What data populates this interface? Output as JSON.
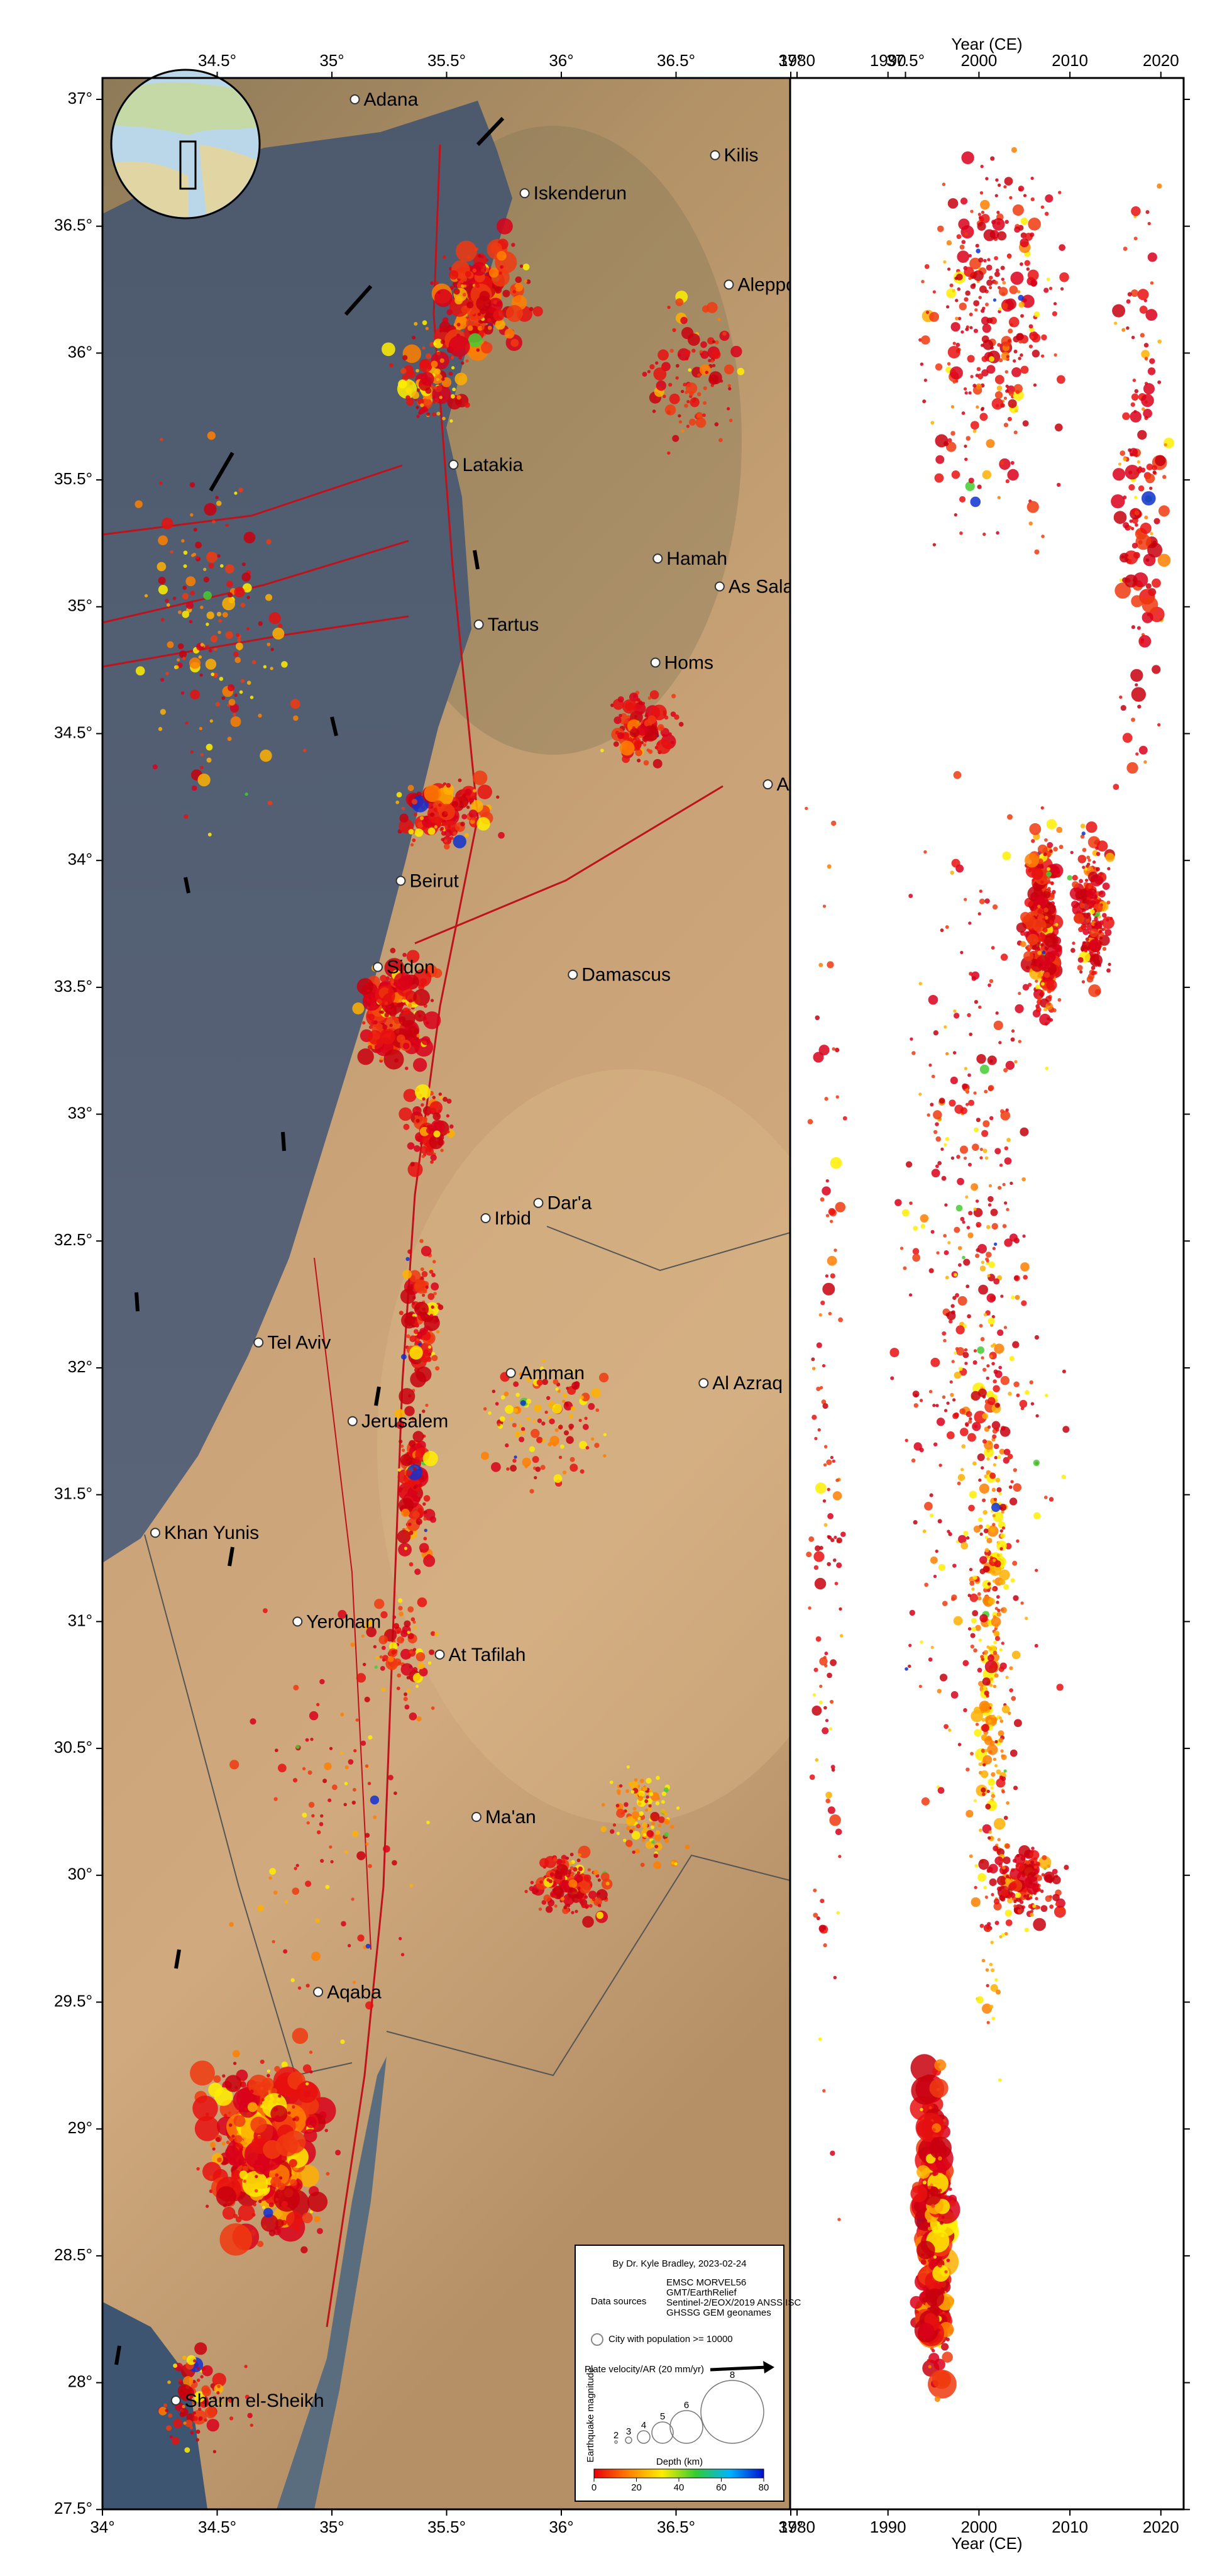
{
  "map": {
    "lon_ticks_bottom": [
      {
        "value": 34,
        "label": "34°"
      },
      {
        "value": 34.5,
        "label": "34.5°"
      },
      {
        "value": 35,
        "label": "35°"
      },
      {
        "value": 35.5,
        "label": "35.5°"
      },
      {
        "value": 36,
        "label": "36°"
      },
      {
        "value": 36.5,
        "label": "36.5°"
      },
      {
        "value": 37,
        "label": "37°"
      }
    ],
    "lon_ticks_top": [
      {
        "value": 34.5,
        "label": "34.5°"
      },
      {
        "value": 35,
        "label": "35°"
      },
      {
        "value": 35.5,
        "label": "35.5°"
      },
      {
        "value": 36,
        "label": "36°"
      },
      {
        "value": 36.5,
        "label": "36.5°"
      },
      {
        "value": 37,
        "label": "37°"
      },
      {
        "value": 37.5,
        "label": "37.5°"
      }
    ],
    "lat_ticks": [
      {
        "value": 37,
        "label": "37°"
      },
      {
        "value": 36.5,
        "label": "36.5°"
      },
      {
        "value": 36,
        "label": "36°"
      },
      {
        "value": 35.5,
        "label": "35.5°"
      },
      {
        "value": 35,
        "label": "35°"
      },
      {
        "value": 34.5,
        "label": "34.5°"
      },
      {
        "value": 34,
        "label": "34°"
      },
      {
        "value": 33.5,
        "label": "33.5°"
      },
      {
        "value": 33,
        "label": "33°"
      },
      {
        "value": 32.5,
        "label": "32.5°"
      },
      {
        "value": 32,
        "label": "32°"
      },
      {
        "value": 31.5,
        "label": "31.5°"
      },
      {
        "value": 31,
        "label": "31°"
      },
      {
        "value": 30.5,
        "label": "30.5°"
      },
      {
        "value": 30,
        "label": "30°"
      },
      {
        "value": 29.5,
        "label": "29.5°"
      },
      {
        "value": 29,
        "label": "29°"
      },
      {
        "value": 28.5,
        "label": "28.5°"
      },
      {
        "value": 28,
        "label": "28°"
      },
      {
        "value": 27.5,
        "label": "27.5°"
      }
    ],
    "cities": [
      {
        "name": "Adana",
        "lon": 35.1,
        "lat": 37.0
      },
      {
        "name": "Kilis",
        "lon": 36.67,
        "lat": 36.78
      },
      {
        "name": "Iskenderun",
        "lon": 35.84,
        "lat": 36.63
      },
      {
        "name": "Aleppo",
        "lon": 36.73,
        "lat": 36.27
      },
      {
        "name": "Latakia",
        "lon": 35.53,
        "lat": 35.56
      },
      {
        "name": "Hamah",
        "lon": 36.42,
        "lat": 35.19
      },
      {
        "name": "As Sala",
        "lon": 36.69,
        "lat": 35.08
      },
      {
        "name": "Tartus",
        "lon": 35.64,
        "lat": 34.93
      },
      {
        "name": "Homs",
        "lon": 36.41,
        "lat": 34.78
      },
      {
        "name": "Al",
        "lon": 36.9,
        "lat": 34.3
      },
      {
        "name": "Beirut",
        "lon": 35.3,
        "lat": 33.92
      },
      {
        "name": "Sidon",
        "lon": 35.2,
        "lat": 33.58
      },
      {
        "name": "Damascus",
        "lon": 36.05,
        "lat": 33.55
      },
      {
        "name": "Dar'a",
        "lon": 35.9,
        "lat": 32.65
      },
      {
        "name": "Irbid",
        "lon": 35.67,
        "lat": 32.59
      },
      {
        "name": "Tel Aviv",
        "lon": 34.68,
        "lat": 32.1
      },
      {
        "name": "Amman",
        "lon": 35.78,
        "lat": 31.98
      },
      {
        "name": "Al Azraq",
        "lon": 36.62,
        "lat": 31.94
      },
      {
        "name": "Jerusalem",
        "lon": 35.09,
        "lat": 31.79
      },
      {
        "name": "Khan Yunis",
        "lon": 34.23,
        "lat": 31.35
      },
      {
        "name": "Yeroham",
        "lon": 34.85,
        "lat": 31.0
      },
      {
        "name": "At Tafilah",
        "lon": 35.47,
        "lat": 30.87
      },
      {
        "name": "Ma'an",
        "lon": 35.63,
        "lat": 30.23
      },
      {
        "name": "Aqaba",
        "lon": 34.94,
        "lat": 29.54
      },
      {
        "name": "Sharm el-Sheikh",
        "lon": 34.32,
        "lat": 27.93
      }
    ]
  },
  "timeline": {
    "axis_label": "Year (CE)",
    "year_ticks": [
      1980,
      1990,
      2000,
      2010,
      2020
    ]
  },
  "legend": {
    "credit": "By Dr. Kyle Bradley, 2023-02-24",
    "data_sources_label": "Data sources",
    "data_sources": [
      "EMSC MORVEL56",
      "GMT/EarthRelief",
      "Sentinel-2/EOX/2019 ANSS ISC",
      "GHSSG GEM geonames"
    ],
    "city_label": "City with population >= 10000",
    "velocity_label": "Plate velocity/AR (20 mm/yr)",
    "magnitude_label": "Earthquake magnitude",
    "magnitudes": [
      2,
      3,
      4,
      5,
      6,
      8
    ],
    "depth_label": "Depth (km)",
    "depth_ticks": [
      0,
      20,
      40,
      60,
      80
    ]
  }
}
